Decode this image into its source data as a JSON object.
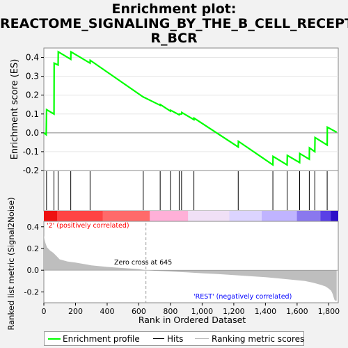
{
  "title_line1": "Enrichment plot:",
  "title_line2": "REACTOME_SIGNALING_BY_THE_B_CELL_RECEPTO",
  "title_line3": "R_BCR",
  "y_label_top": "Enrichment score (ES)",
  "y_label_bottom": "Ranked list metric (Signal2Noise)",
  "x_label": "Rank in Ordered Dataset",
  "pos_label": "'2' (positively correlated)",
  "neg_label": "'REST' (negatively correlated)",
  "zero_cross_label": "Zero cross at 645",
  "legend": {
    "profile": "Enrichment profile",
    "hits": "Hits",
    "ranking": "Ranking metric scores"
  },
  "colors": {
    "profile": "#00ff00",
    "positive": "#ff0000",
    "negative": "#0000ff",
    "metric_fill": "#bebebe"
  },
  "chart_data": {
    "type": "line",
    "es_axis": {
      "ylim": [
        -0.2,
        0.45
      ],
      "ticks": [
        -0.2,
        -0.1,
        0.0,
        0.1,
        0.2,
        0.3,
        0.4
      ]
    },
    "x_axis": {
      "xlim": [
        0,
        1860
      ],
      "ticks": [
        0,
        200,
        400,
        600,
        800,
        1000,
        1200,
        1400,
        1600,
        1800
      ],
      "tick_labels": [
        "0",
        "200",
        "400",
        "600",
        "800",
        "1,000",
        "1,200",
        "1,400",
        "1,600",
        "1,800"
      ]
    },
    "metric_axis": {
      "ylim": [
        -0.3,
        0.45
      ],
      "ticks": [
        -0.2,
        0.0,
        0.2,
        0.4
      ]
    },
    "hits": [
      17,
      64,
      90,
      170,
      292,
      628,
      735,
      800,
      855,
      870,
      948,
      1228,
      1447,
      1537,
      1616,
      1677,
      1712,
      1790
    ],
    "es_profile": [
      [
        0,
        0
      ],
      [
        15,
        -0.01
      ],
      [
        17,
        0.123
      ],
      [
        64,
        0.1
      ],
      [
        65,
        0.37
      ],
      [
        90,
        0.36
      ],
      [
        91,
        0.43
      ],
      [
        170,
        0.39
      ],
      [
        171,
        0.43
      ],
      [
        292,
        0.37
      ],
      [
        293,
        0.385
      ],
      [
        628,
        0.19
      ],
      [
        629,
        0.19
      ],
      [
        735,
        0.146
      ],
      [
        736,
        0.15
      ],
      [
        800,
        0.115
      ],
      [
        801,
        0.12
      ],
      [
        855,
        0.096
      ],
      [
        856,
        0.1
      ],
      [
        870,
        0.1
      ],
      [
        871,
        0.108
      ],
      [
        948,
        0.07
      ],
      [
        949,
        0.078
      ],
      [
        1228,
        -0.075
      ],
      [
        1229,
        -0.045
      ],
      [
        1447,
        -0.17
      ],
      [
        1448,
        -0.125
      ],
      [
        1537,
        -0.17
      ],
      [
        1538,
        -0.12
      ],
      [
        1616,
        -0.158
      ],
      [
        1617,
        -0.11
      ],
      [
        1677,
        -0.14
      ],
      [
        1678,
        -0.08
      ],
      [
        1712,
        -0.1
      ],
      [
        1713,
        -0.025
      ],
      [
        1790,
        -0.065
      ],
      [
        1791,
        0.03
      ],
      [
        1850,
        0.003
      ]
    ],
    "metric_profile": [
      [
        0,
        0.32
      ],
      [
        5,
        0.28
      ],
      [
        10,
        0.25
      ],
      [
        20,
        0.21
      ],
      [
        40,
        0.18
      ],
      [
        60,
        0.16
      ],
      [
        80,
        0.13
      ],
      [
        100,
        0.1
      ],
      [
        150,
        0.08
      ],
      [
        200,
        0.07
      ],
      [
        300,
        0.045
      ],
      [
        400,
        0.03
      ],
      [
        500,
        0.02
      ],
      [
        600,
        0.01
      ],
      [
        645,
        0.0
      ],
      [
        700,
        -0.005
      ],
      [
        800,
        -0.012
      ],
      [
        900,
        -0.02
      ],
      [
        1000,
        -0.028
      ],
      [
        1100,
        -0.035
      ],
      [
        1200,
        -0.045
      ],
      [
        1300,
        -0.055
      ],
      [
        1400,
        -0.065
      ],
      [
        1500,
        -0.078
      ],
      [
        1600,
        -0.092
      ],
      [
        1650,
        -0.1
      ],
      [
        1700,
        -0.115
      ],
      [
        1750,
        -0.135
      ],
      [
        1780,
        -0.15
      ],
      [
        1800,
        -0.17
      ],
      [
        1815,
        -0.19
      ],
      [
        1825,
        -0.22
      ],
      [
        1835,
        -0.27
      ],
      [
        1840,
        -0.28
      ],
      [
        1850,
        -0.28
      ]
    ]
  }
}
